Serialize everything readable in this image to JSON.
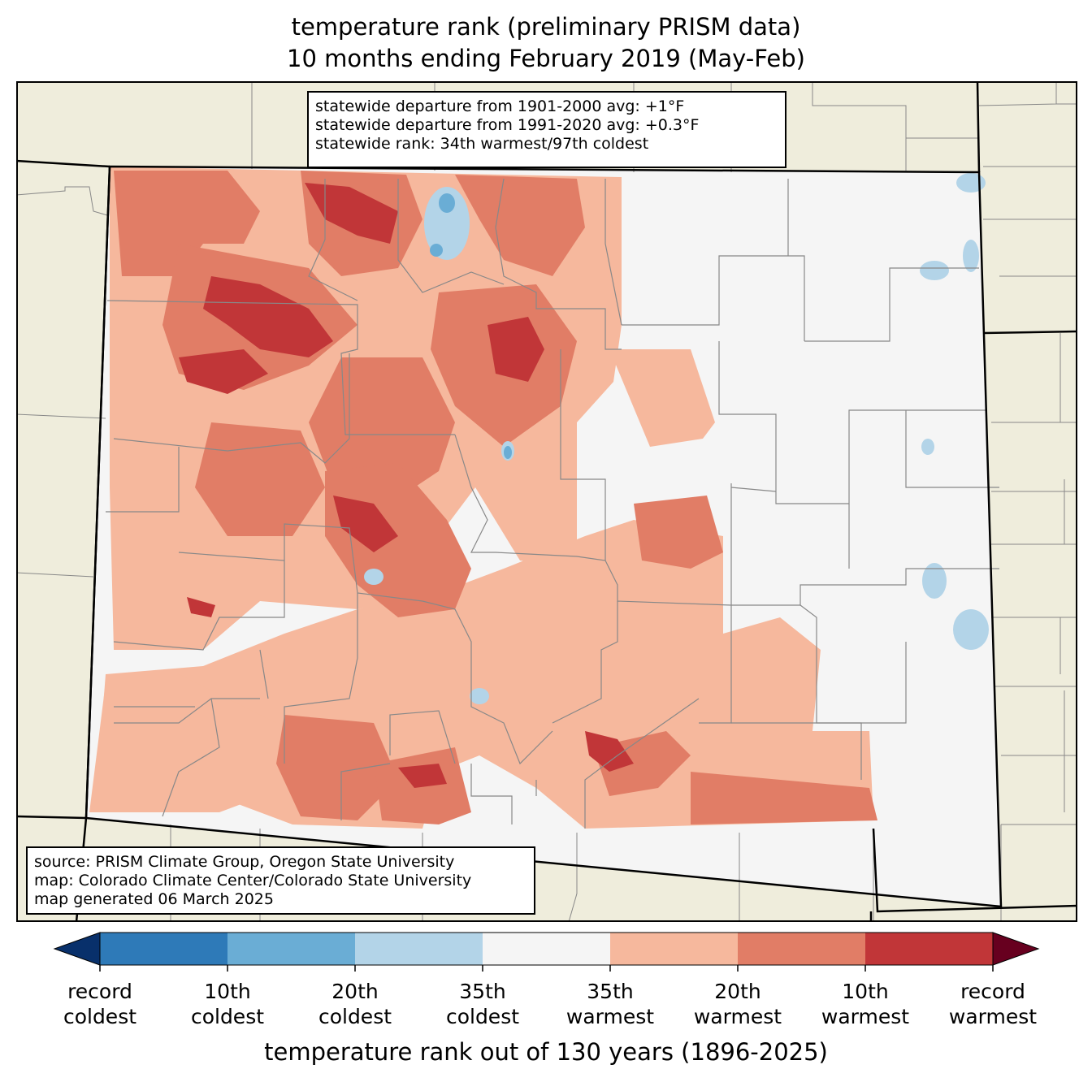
{
  "title": {
    "line1": "temperature rank (preliminary PRISM data)",
    "line2": "10 months ending February 2019 (May-Feb)"
  },
  "stats": {
    "line1": "statewide departure from 1901-2000 avg: +1°F",
    "line2": "statewide departure from 1991-2020 avg: +0.3°F",
    "line3": "statewide rank: 34th warmest/97th coldest"
  },
  "source": {
    "line1": "source: PRISM Climate Group, Oregon State University",
    "line2": "map: Colorado Climate Center/Colorado State University",
    "line3": "map generated 06 March 2025"
  },
  "legend": {
    "title": "temperature rank out of 130 years (1896-2025)",
    "ticks": [
      {
        "line1": "record",
        "line2": "coldest"
      },
      {
        "line1": "10th",
        "line2": "coldest"
      },
      {
        "line1": "20th",
        "line2": "coldest"
      },
      {
        "line1": "35th",
        "line2": "coldest"
      },
      {
        "line1": "35th",
        "line2": "warmest"
      },
      {
        "line1": "20th",
        "line2": "warmest"
      },
      {
        "line1": "10th",
        "line2": "warmest"
      },
      {
        "line1": "record",
        "line2": "warmest"
      }
    ],
    "colors": [
      "#08306b",
      "#2e7ab8",
      "#6aadd5",
      "#b3d4e8",
      "#f5f5f5",
      "#f6b89d",
      "#e17d66",
      "#c13638",
      "#67001f"
    ]
  },
  "colors": {
    "land_outside": "#efeddc",
    "state_fill": "#f5f5f5",
    "county_line": "#888888",
    "state_line": "#000000"
  }
}
